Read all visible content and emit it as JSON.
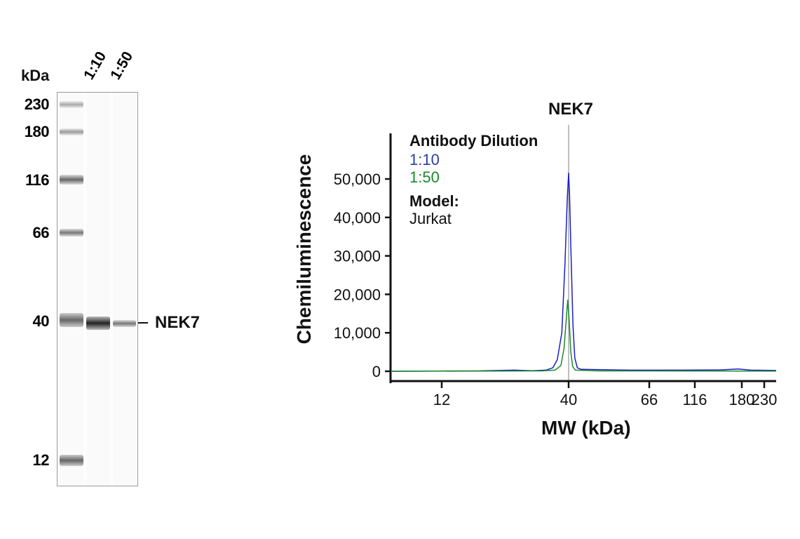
{
  "blot": {
    "unit_label": "kDa",
    "lanes": [
      "1:10",
      "1:50"
    ],
    "markers": [
      "230",
      "180",
      "116",
      "66",
      "40",
      "12"
    ],
    "target_label": "NEK7",
    "band_intensity": {
      "1:10": 0.9,
      "1:50": 0.5
    }
  },
  "chart_data": {
    "type": "line",
    "title": "NEK7",
    "xlabel": "MW (kDa)",
    "ylabel": "Chemiluminescence",
    "x_ticks": [
      12,
      40,
      66,
      116,
      180,
      230
    ],
    "x_tick_labels": [
      "12",
      "40",
      "66",
      "116",
      "180",
      "230"
    ],
    "y_ticks": [
      0,
      10000,
      20000,
      30000,
      40000,
      50000
    ],
    "y_tick_labels": [
      "0",
      "10,000",
      "20,000",
      "30,000",
      "40,000",
      "50,000"
    ],
    "ylim": [
      0,
      62000
    ],
    "reference_line_x": 40,
    "legend": {
      "title": "Antibody Dilution",
      "model_label": "Model:",
      "model_value": "Jurkat",
      "placement": "top-left"
    },
    "series": [
      {
        "name": "1:10",
        "color": "#1a1fc8",
        "points": [
          [
            1,
            0
          ],
          [
            10,
            50
          ],
          [
            20,
            100
          ],
          [
            28,
            300
          ],
          [
            32,
            150
          ],
          [
            35,
            300
          ],
          [
            36.5,
            900
          ],
          [
            37.5,
            3000
          ],
          [
            38.5,
            10000
          ],
          [
            39.2,
            28000
          ],
          [
            39.7,
            45000
          ],
          [
            40,
            51500
          ],
          [
            40.3,
            46000
          ],
          [
            40.8,
            30000
          ],
          [
            41.4,
            12000
          ],
          [
            42,
            3500
          ],
          [
            42.8,
            900
          ],
          [
            44,
            500
          ],
          [
            60,
            300
          ],
          [
            100,
            300
          ],
          [
            150,
            350
          ],
          [
            175,
            600
          ],
          [
            200,
            300
          ],
          [
            257,
            200
          ]
        ]
      },
      {
        "name": "1:50",
        "color": "#1a8a2a",
        "points": [
          [
            1,
            0
          ],
          [
            20,
            50
          ],
          [
            34,
            100
          ],
          [
            37,
            300
          ],
          [
            38.3,
            1500
          ],
          [
            39,
            6000
          ],
          [
            39.5,
            14000
          ],
          [
            39.8,
            18500
          ],
          [
            40.2,
            13000
          ],
          [
            40.7,
            5000
          ],
          [
            41.3,
            1200
          ],
          [
            42.2,
            300
          ],
          [
            50,
            100
          ],
          [
            257,
            50
          ]
        ]
      }
    ]
  }
}
